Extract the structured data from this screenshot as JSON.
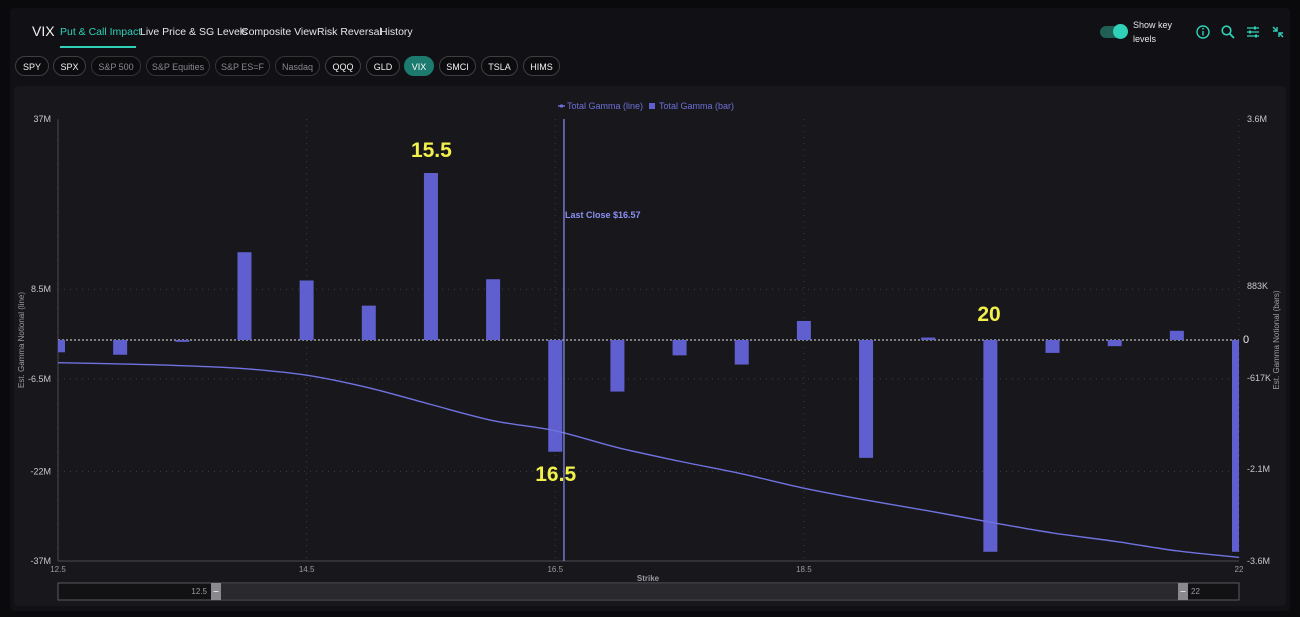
{
  "header": {
    "title": "VIX",
    "tabs": [
      "Put & Call Impact",
      "Live Price & SG Levels",
      "Composite View",
      "Risk Reversal",
      "History"
    ],
    "active_tab": 0,
    "toggle_label": "Show key levels",
    "toggle_on": true,
    "icons": [
      "info-icon",
      "search-icon",
      "sliders-icon",
      "collapse-icon"
    ]
  },
  "tickers": {
    "items": [
      "SPY",
      "SPX",
      "S&P 500",
      "S&P Equities",
      "S&P ES=F",
      "Nasdaq",
      "QQQ",
      "GLD",
      "VIX",
      "SMCI",
      "TSLA",
      "HIMS"
    ],
    "dimmed": [
      "S&P 500",
      "S&P Equities",
      "S&P ES=F",
      "Nasdaq"
    ],
    "active": "VIX"
  },
  "colors": {
    "accent": "#2fd1b8",
    "bar": "#5f5fd0",
    "line": "#6f72e0",
    "annotation": "#f2f04a"
  },
  "chart_data": {
    "type": "bar",
    "legend": [
      "Total Gamma (line)",
      "Total Gamma (bar)"
    ],
    "legend_position": "top-center",
    "xlabel": "Strike",
    "ylabel_left": "Est. Gamma Notional (line)",
    "ylabel_right": "Est. Gamma Notional (bars)",
    "x_ticks": [
      "12.5",
      "14.5",
      "16.5",
      "18.5",
      "22"
    ],
    "y_left_ticks": [
      "37M",
      "8.5M",
      "-6.5M",
      "-22M",
      "-37M"
    ],
    "y_left_tick_values": [
      37,
      8.5,
      -6.5,
      -22,
      -37
    ],
    "y_right_ticks": [
      "3.6M",
      "883K",
      "0",
      "-617K",
      "-2.1M",
      "-3.6M"
    ],
    "y_right_tick_values": [
      3.6,
      0.883,
      0,
      -0.617,
      -2.1,
      -3.6
    ],
    "left_range_millions": [
      -37,
      37
    ],
    "right_range_millions": [
      -3.6,
      3.6
    ],
    "grid": true,
    "bars": {
      "name": "Total Gamma (bar)",
      "strikes": [
        12.5,
        13,
        13.5,
        14,
        14.5,
        15,
        15.5,
        16,
        16.5,
        17,
        17.5,
        18,
        18.5,
        19,
        19.5,
        20,
        20.5,
        21,
        21.5,
        22
      ],
      "values_millions": [
        -0.2,
        -0.24,
        -0.03,
        1.43,
        0.97,
        0.56,
        2.72,
        0.99,
        -1.82,
        -0.84,
        -0.25,
        -0.4,
        0.31,
        -1.92,
        0.04,
        -3.45,
        -0.21,
        -0.1,
        0.15,
        -3.45
      ]
    },
    "line": {
      "name": "Total Gamma (line)",
      "x": [
        12.5,
        13,
        13.5,
        14,
        14.5,
        15,
        15.5,
        16,
        16.5,
        17,
        17.5,
        18,
        18.5,
        19,
        19.5,
        20,
        20.5,
        21,
        21.5,
        22
      ],
      "values_millions": [
        -3.8,
        -4.0,
        -4.3,
        -4.8,
        -5.9,
        -8.0,
        -10.8,
        -13.5,
        -15.2,
        -18.0,
        -20.3,
        -22.4,
        -24.8,
        -26.8,
        -28.6,
        -30.5,
        -32.3,
        -33.7,
        -35.3,
        -36.4
      ]
    },
    "last_close": {
      "label": "Last Close $16.57",
      "value": 16.57
    },
    "annotations": [
      {
        "text": "15.5",
        "strike": 15.5
      },
      {
        "text": "16.5",
        "strike": 16.5
      },
      {
        "text": "20",
        "strike": 20
      }
    ],
    "range_slider": {
      "min_label": "12.5",
      "max_label": "22"
    }
  }
}
